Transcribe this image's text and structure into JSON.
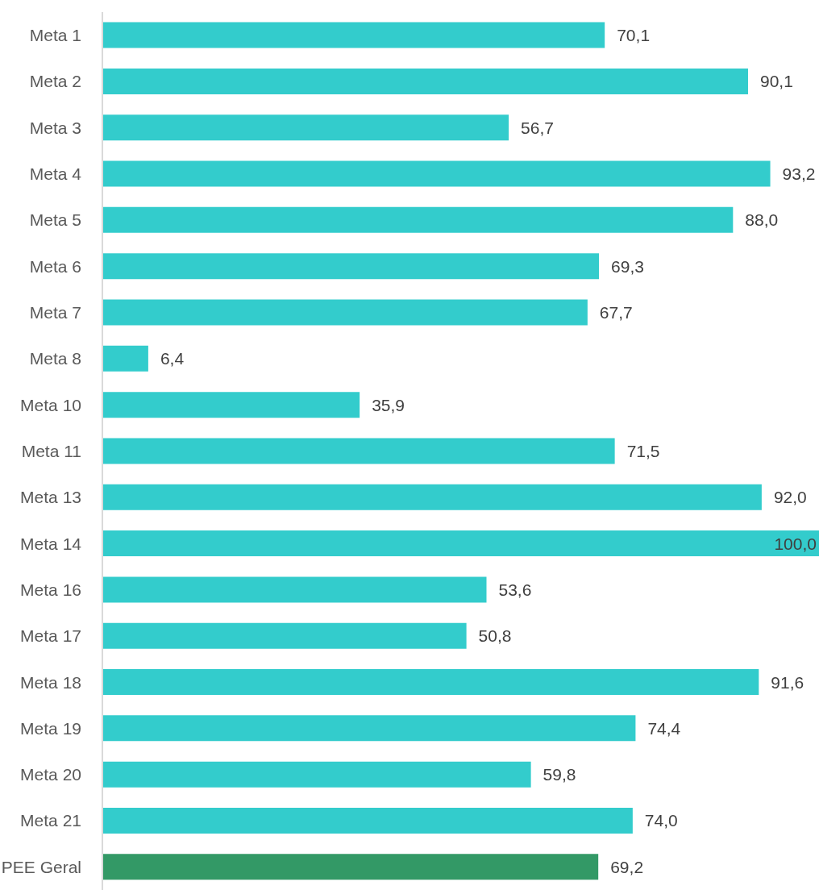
{
  "chart_data": {
    "type": "bar",
    "orientation": "horizontal",
    "categories": [
      "Meta 1",
      "Meta 2",
      "Meta 3",
      "Meta 4",
      "Meta 5",
      "Meta 6",
      "Meta 7",
      "Meta 8",
      "Meta 10",
      "Meta 11",
      "Meta 13",
      "Meta 14",
      "Meta 16",
      "Meta 17",
      "Meta 18",
      "Meta 19",
      "Meta 20",
      "Meta 21",
      "PEE Geral"
    ],
    "values": [
      70.1,
      90.1,
      56.7,
      93.2,
      88.0,
      69.3,
      67.7,
      6.4,
      35.9,
      71.5,
      92.0,
      100.0,
      53.6,
      50.8,
      91.6,
      74.4,
      59.8,
      74.0,
      69.2
    ],
    "value_labels": [
      "70,1",
      "90,1",
      "56,7",
      "93,2",
      "88,0",
      "69,3",
      "67,7",
      "6,4",
      "35,9",
      "71,5",
      "92,0",
      "100,0",
      "53,6",
      "50,8",
      "91,6",
      "74,4",
      "59,8",
      "74,0",
      "69,2"
    ],
    "colors": [
      "#33cccc",
      "#33cccc",
      "#33cccc",
      "#33cccc",
      "#33cccc",
      "#33cccc",
      "#33cccc",
      "#33cccc",
      "#33cccc",
      "#33cccc",
      "#33cccc",
      "#33cccc",
      "#33cccc",
      "#33cccc",
      "#33cccc",
      "#33cccc",
      "#33cccc",
      "#33cccc",
      "#339966"
    ],
    "xlim": [
      0,
      100
    ],
    "grid": false,
    "legend": false
  }
}
